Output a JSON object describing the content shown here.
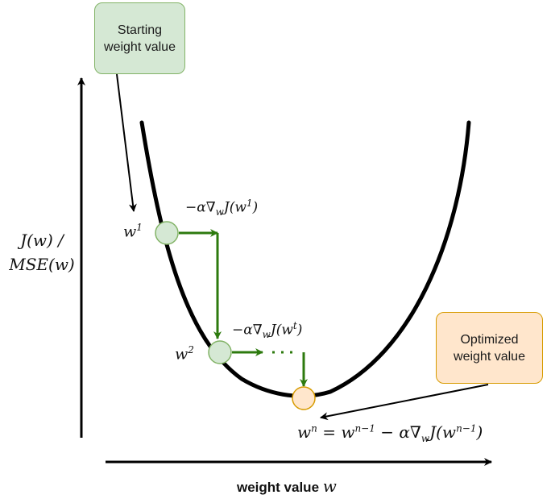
{
  "start_box": {
    "line1": "Starting",
    "line2": "weight value"
  },
  "optimized_box": {
    "line1": "Optimized",
    "line2": "weight value"
  },
  "y_axis_label": {
    "line1": "J(w) /",
    "line2": "MSE(w)"
  },
  "x_axis_label": {
    "text": "weight value",
    "var": "w"
  },
  "points": {
    "w1": {
      "base": "w",
      "sup": "1"
    },
    "w2": {
      "base": "w",
      "sup": "2"
    }
  },
  "step_labels": {
    "step1": {
      "prefix": "−α∇",
      "sub": "w",
      "fn": "J(w",
      "sup": "1",
      "close": ")"
    },
    "step_t": {
      "prefix": "−α∇",
      "sub": "w",
      "fn": "J(w",
      "sup": "t",
      "close": ")"
    }
  },
  "update_rule": {
    "lhs": "w",
    "lhs_sup": "n",
    "eq": " = w",
    "prev_sup": "n−1",
    "minus": " − α∇",
    "sub": "w",
    "fn": "J(w",
    "fn_sup": "n−1",
    "close": ")"
  },
  "colors": {
    "green_fill": "#d5e8d4",
    "green_stroke": "#82b366",
    "orange_fill": "#ffe6cc",
    "orange_stroke": "#d79b00",
    "arrow_green": "#2d7a0e",
    "curve": "#000000"
  }
}
